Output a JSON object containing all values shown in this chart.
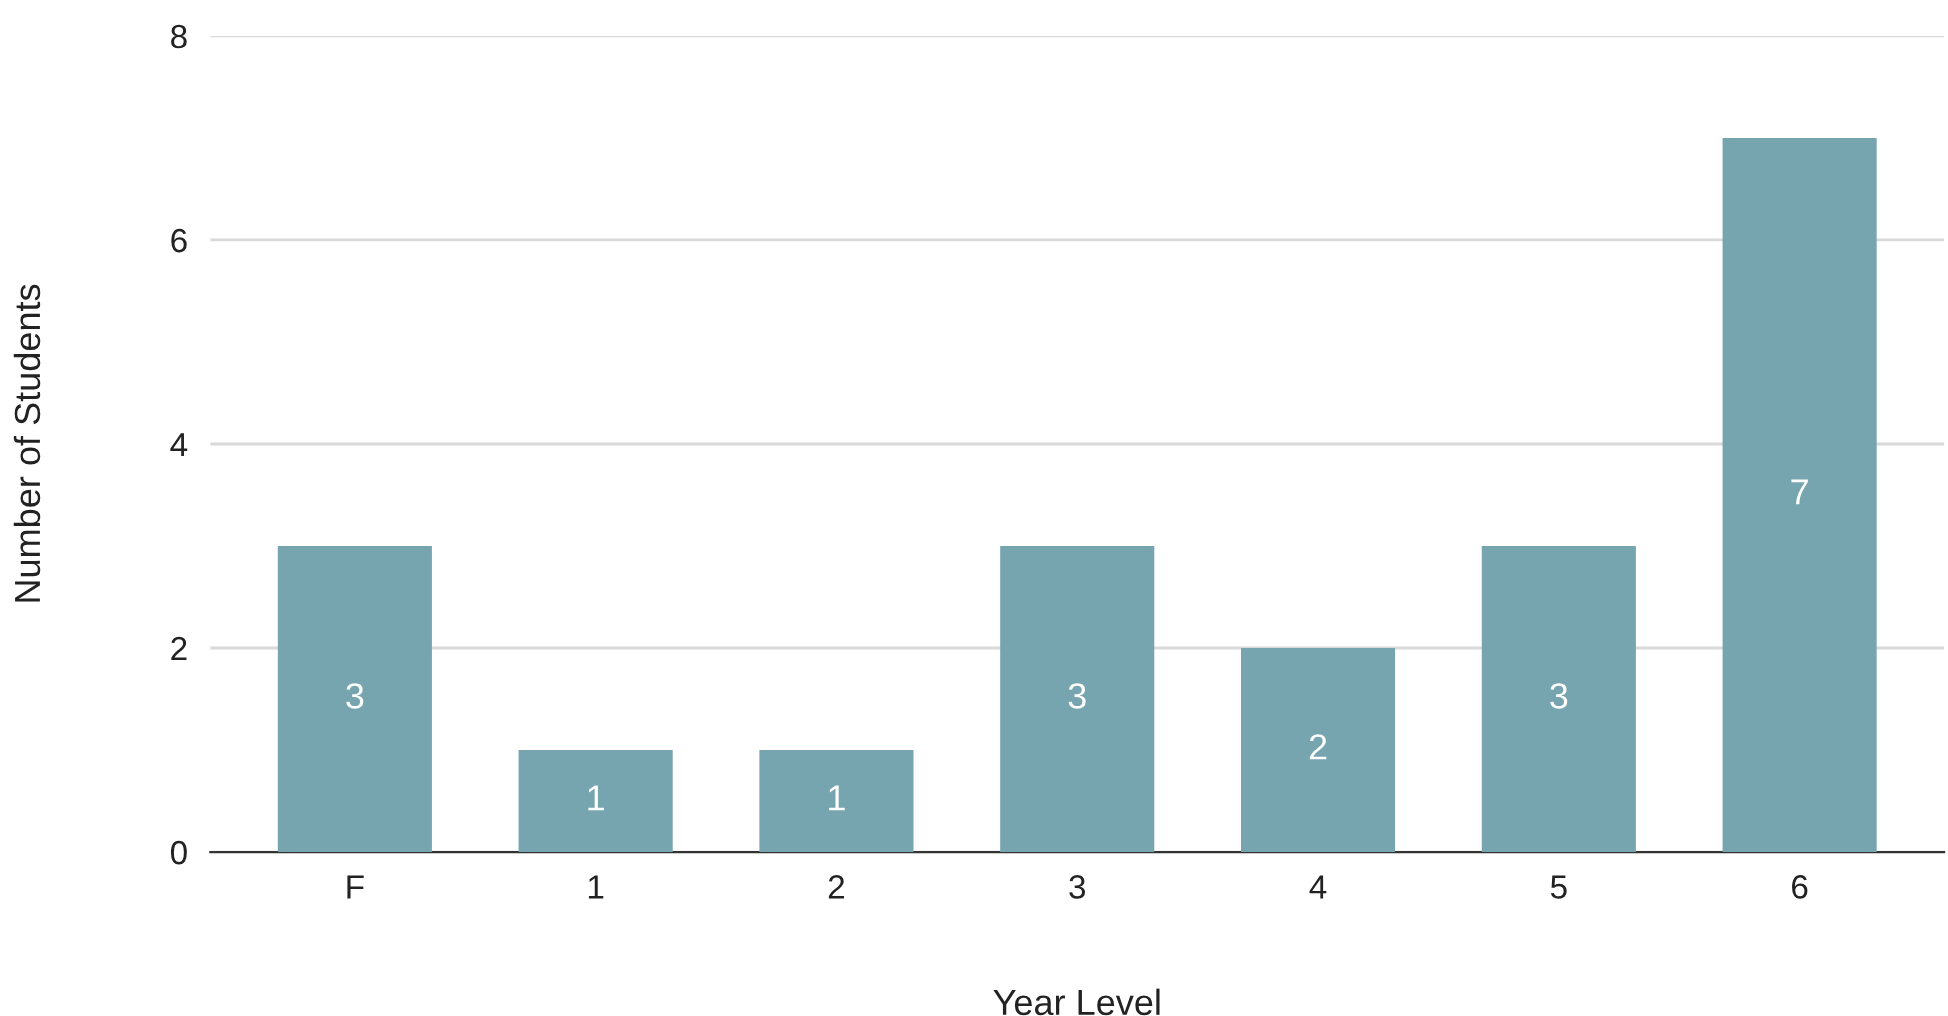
{
  "chart_data": {
    "type": "bar",
    "xlabel": "Year Level",
    "ylabel": "Number of Students",
    "categories": [
      "F",
      "1",
      "2",
      "3",
      "4",
      "5",
      "6"
    ],
    "values": [
      3,
      1,
      1,
      3,
      2,
      3,
      7
    ],
    "color": "#76a5af",
    "ylim": [
      0,
      8
    ],
    "yticks": [
      0,
      2,
      4,
      6,
      8
    ],
    "grid": "y",
    "data_labels": true
  }
}
